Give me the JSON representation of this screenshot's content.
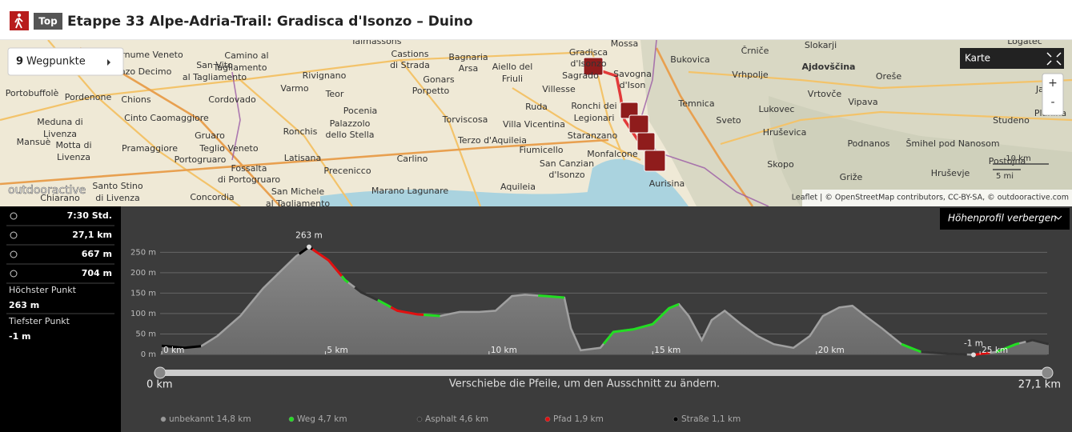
{
  "header": {
    "badge": "Top",
    "title": "Etappe 33 Alpe-Adria-Trail: Gradisca d'Isonzo – Duino"
  },
  "map": {
    "waypoints_count": "9",
    "waypoints_label": "Wegpunkte",
    "layer": "Karte",
    "zoom_in": "+",
    "zoom_out": "-",
    "scale_km": "10 km",
    "scale_mi": "5 mi",
    "attribution": "Leaflet | © OpenStreetMap contributors, CC-BY-SA, © outdooractive.com",
    "logo": "outdooractive",
    "places": [
      "Talmassons",
      "Camino al",
      "Tagliamento",
      "Castions",
      "di Strada",
      "Bagnaria",
      "Arsa",
      "Aiello del",
      "Friuli",
      "Gradisca",
      "d'Isonzo",
      "Mossa",
      "Bukovica",
      "Črniče",
      "Slokarji",
      "Ajdovščina",
      "Logatec",
      "Vrhpolje",
      "Oreše",
      "Jakovi",
      "rnume Veneto",
      "San Vito",
      "al Tagliamento",
      "nzo Decimo",
      "Rivignano",
      "Varmo",
      "Teor",
      "Gonars",
      "Porpetto",
      "Villesse",
      "Sagrado",
      "Savogna",
      "d'Ison",
      "Portobuffolè",
      "Pordenone",
      "Chions",
      "Cordovado",
      "Ruda",
      "Ronchi dei",
      "Legionari",
      "Temnica",
      "Lukovec",
      "Vrtovče",
      "Vipava",
      "Pocenia",
      "Cinto Caomaggiore",
      "Palazzolo",
      "dello Stella",
      "Torviscosa",
      "Villa Vicentina",
      "Sveto",
      "Hruševica",
      "Studeno",
      "Planina",
      "Meduna di",
      "Livenza",
      "Ronchis",
      "Gruaro",
      "Staranzano",
      "Terzo d'Aquileia",
      "Mansuè",
      "Motta di",
      "Livenza",
      "Pramaggiore",
      "Teglio Veneto",
      "Latisana",
      "Fiumicello",
      "Monfalcone",
      "Podnanos",
      "Šmihel pod Nanosom",
      "Carlino",
      "Portogruaro",
      "Precenicco",
      "San Canzian",
      "d'Isonzo",
      "Skopo",
      "Postojna",
      "Fossalta",
      "di Portogruaro",
      "Aurisina",
      "Griže",
      "Hruševje",
      "Santo Stino",
      "di Livenza",
      "Concordia",
      "San Michele",
      "al Tagliamento",
      "Marano Lagunare",
      "Aquileia",
      "Chiarano"
    ]
  },
  "stats": {
    "duration": "7:30 Std.",
    "distance": "27,1 km",
    "ascent": "667 m",
    "descent": "704 m",
    "highest_label": "Höchster Punkt",
    "highest": "263 m",
    "lowest_label": "Tiefster Punkt",
    "lowest": "-1 m"
  },
  "chart_data": {
    "type": "area",
    "toggle": "Höhenprofil verbergen",
    "x": [
      0,
      0.7,
      1.2,
      1.7,
      2.4,
      2.8,
      3.1,
      3.6,
      4.1,
      4.5,
      5.1,
      5.6,
      6.1,
      6.6,
      7.2,
      7.8,
      8.5,
      9.1,
      9.7,
      10.2,
      10.7,
      11.1,
      11.7,
      12.3,
      12.5,
      12.8,
      13.4,
      13.8,
      14.4,
      15.0,
      15.5,
      15.8,
      16.1,
      16.5,
      16.8,
      17.2,
      17.7,
      18.2,
      18.7,
      19.3,
      19.8,
      20.2,
      20.7,
      21.1,
      21.5,
      22.0,
      22.6,
      23.2,
      24.0,
      24.8,
      25.5,
      26.1,
      26.6,
      27.1
    ],
    "y": [
      21,
      16,
      20,
      45,
      94,
      133,
      162,
      201,
      240,
      263,
      230,
      182,
      152,
      133,
      107,
      98,
      94,
      104,
      104,
      107,
      143,
      146,
      143,
      139,
      64,
      10,
      16,
      55,
      61,
      74,
      113,
      123,
      94,
      35,
      84,
      107,
      74,
      45,
      25,
      16,
      45,
      94,
      115,
      119,
      94,
      64,
      25,
      6,
      2,
      -1,
      6,
      25,
      35,
      25
    ],
    "xlim": [
      0,
      27.1
    ],
    "ylim": [
      0,
      280
    ],
    "xticks": [
      {
        "value": 0,
        "label": "0 km"
      },
      {
        "value": 5,
        "label": "5 km"
      },
      {
        "value": 10,
        "label": "10 km"
      },
      {
        "value": 15,
        "label": "15 km"
      },
      {
        "value": 20,
        "label": "20 km"
      },
      {
        "value": 25,
        "label": "25 km"
      }
    ],
    "yticks": [
      {
        "value": 0,
        "label": "0 m"
      },
      {
        "value": 50,
        "label": "50 m"
      },
      {
        "value": 100,
        "label": "100 m"
      },
      {
        "value": 150,
        "label": "150 m"
      },
      {
        "value": 200,
        "label": "200 m"
      },
      {
        "value": 250,
        "label": "250 m"
      }
    ],
    "grid": true,
    "annotations": [
      {
        "text": "263 m",
        "x": 4.5,
        "y": 263
      },
      {
        "text": "-1 m",
        "x": 24.8,
        "y": -1
      }
    ],
    "slider": {
      "start": "0 km",
      "hint": "Verschiebe die Pfeile, um den Ausschnitt zu ändern.",
      "end": "27,1 km"
    },
    "legend": [
      {
        "name": "unbekannt 14,8 km",
        "color": "#9a9a9a"
      },
      {
        "name": "Weg 4,7 km",
        "color": "#22dd22",
        "segments": [
          [
            5.5,
            5.7
          ],
          [
            6.6,
            7.0
          ],
          [
            8.0,
            8.5
          ],
          [
            11.5,
            12.3
          ],
          [
            13.5,
            15.8
          ],
          [
            22.6,
            23.2
          ],
          [
            25.5,
            26.2
          ]
        ]
      },
      {
        "name": "Asphalt 4,6 km",
        "color": "#333333",
        "segments": [
          [
            5.9,
            6.6
          ],
          [
            23.2,
            24.6
          ],
          [
            26.4,
            27.1
          ]
        ]
      },
      {
        "name": "Pfad 1,9 km",
        "color": "#e01010",
        "segments": [
          [
            4.6,
            5.5
          ],
          [
            7.0,
            8.0
          ],
          [
            24.8,
            25.3
          ]
        ]
      },
      {
        "name": "Straße 1,1 km",
        "color": "#000000",
        "segments": [
          [
            0,
            1.2
          ],
          [
            4.2,
            4.6
          ]
        ]
      }
    ]
  }
}
